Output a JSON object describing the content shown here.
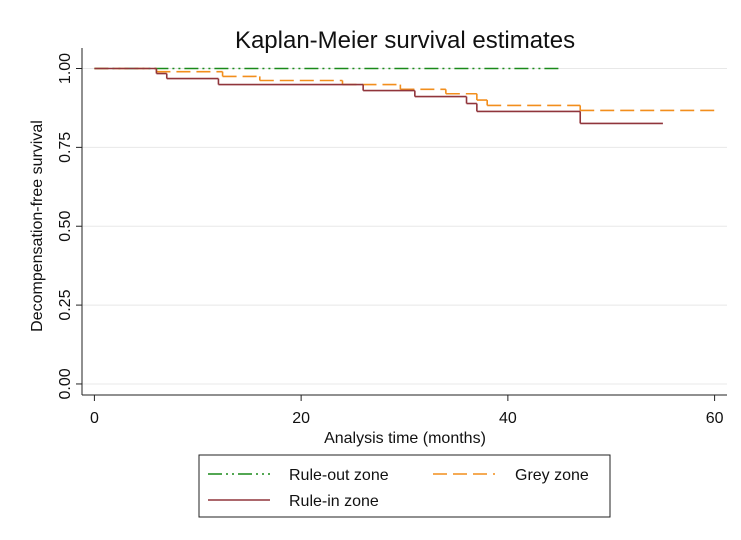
{
  "chart_data": {
    "type": "step",
    "title": "Kaplan-Meier survival estimates",
    "x_label": "Analysis time (months)",
    "y_label": "Decompensation-free survival",
    "xlim": [
      -1.2,
      61.2
    ],
    "ylim": [
      -0.035,
      1.065
    ],
    "xticks": [
      0,
      20,
      40,
      60
    ],
    "yticks": [
      {
        "value": 0,
        "label": "0.00"
      },
      {
        "value": 0.25,
        "label": "0.25"
      },
      {
        "value": 0.5,
        "label": "0.50"
      },
      {
        "value": 0.75,
        "label": "0.75"
      },
      {
        "value": 1,
        "label": "1.00"
      }
    ],
    "grid": true,
    "series": [
      {
        "name": "Rule-out zone",
        "color": "#1a8a1a",
        "linestyle": "dashdot",
        "x": [
          0,
          45
        ],
        "values": [
          1,
          1
        ]
      },
      {
        "name": "Grey zone",
        "color": "#f28e1c",
        "linestyle": "dashed",
        "x": [
          0,
          6,
          12.4,
          16,
          24,
          29.6,
          34,
          37,
          38,
          47,
          60
        ],
        "values": [
          1,
          0.99,
          0.975,
          0.962,
          0.949,
          0.934,
          0.92,
          0.9,
          0.883,
          0.867,
          0.867
        ]
      },
      {
        "name": "Rule-in zone",
        "color": "#90353b",
        "linestyle": "solid",
        "x": [
          0,
          6,
          7,
          12,
          26,
          31,
          36,
          37,
          47,
          55
        ],
        "values": [
          1,
          0.984,
          0.968,
          0.949,
          0.93,
          0.911,
          0.889,
          0.864,
          0.826,
          0.826
        ]
      }
    ]
  }
}
